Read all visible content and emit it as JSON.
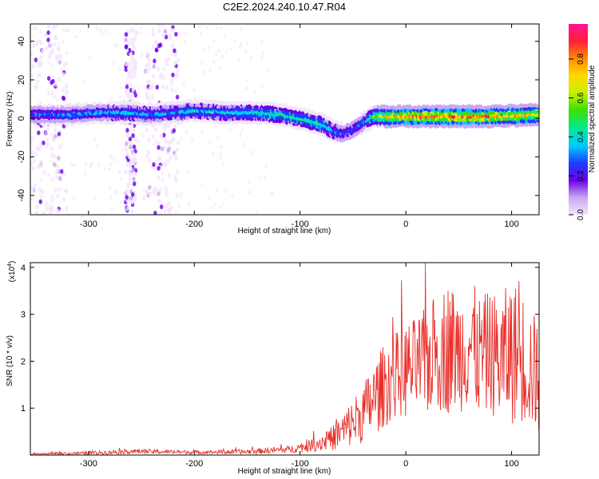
{
  "title": "C2E2.2024.240.10.47.R04",
  "chart_data": [
    {
      "type": "heatmap",
      "xlabel": "Height of straight line (km)",
      "ylabel": "Frequency (Hz)",
      "xlim": [
        -355,
        126
      ],
      "ylim": [
        -50,
        49
      ],
      "xticks": [
        -300,
        -200,
        -100,
        0,
        100
      ],
      "yticks": [
        -40,
        -20,
        0,
        20,
        40
      ],
      "grid": false,
      "colorbar": {
        "label": "Normalized spectral amplitude",
        "range": [
          0,
          0.98
        ],
        "ticks": [
          0.0,
          0.2,
          0.4,
          0.6,
          0.8
        ],
        "tick_labels": [
          "0.0",
          "0.2",
          "0.4",
          "0.6",
          "0.8"
        ],
        "colors": [
          "#f4e6fb",
          "#c9a8f2",
          "#6a00e8",
          "#1f3cff",
          "#00c8ff",
          "#00e89a",
          "#3ee000",
          "#c8f000",
          "#ffd800",
          "#ff8a00",
          "#ff1e3c",
          "#ff1493"
        ]
      },
      "ridge": {
        "x": [
          -350,
          -320,
          -290,
          -260,
          -240,
          -220,
          -200,
          -170,
          -140,
          -120,
          -100,
          -80,
          -70,
          -60,
          -50,
          -40,
          -30,
          -20,
          0,
          40,
          80,
          126
        ],
        "y": [
          2,
          2,
          3,
          3,
          2,
          3,
          4,
          3,
          3,
          2,
          0,
          -3,
          -6,
          -8,
          -6,
          -2,
          1,
          1,
          1,
          1,
          1,
          2
        ],
        "amplitude": [
          0.35,
          0.4,
          0.4,
          0.45,
          0.4,
          0.45,
          0.45,
          0.45,
          0.5,
          0.55,
          0.5,
          0.5,
          0.45,
          0.35,
          0.3,
          0.4,
          0.6,
          0.8,
          0.95,
          0.95,
          0.9,
          0.8
        ]
      },
      "noise_bands_x": [
        [
          -355,
          -320
        ],
        [
          -265,
          -255
        ],
        [
          -248,
          -215
        ]
      ]
    },
    {
      "type": "line",
      "xlabel": "Height of straight line (km)",
      "ylabel": "SNR (10 * v/v)",
      "y_multiplier": "(x10",
      "y_multiplier_exponent": "4",
      "y_multiplier_close": ")",
      "xlim": [
        -355,
        126
      ],
      "ylim": [
        0,
        41000
      ],
      "xticks": [
        -300,
        -200,
        -100,
        0,
        100
      ],
      "yticks": [
        10000,
        20000,
        30000,
        40000
      ],
      "ytick_labels": [
        "1",
        "2",
        "3",
        "4"
      ],
      "grid": false,
      "series": [
        {
          "color": "#e8302a",
          "x": [
            -355,
            -300,
            -260,
            -200,
            -150,
            -110,
            -90,
            -70,
            -60,
            -50,
            -40,
            -30,
            -20,
            -10,
            0,
            10,
            20,
            30,
            40,
            50,
            60,
            70,
            80,
            90,
            100,
            110,
            120,
            126
          ],
          "y": [
            200,
            400,
            800,
            600,
            700,
            1200,
            2000,
            3500,
            5000,
            7000,
            9000,
            12000,
            15000,
            17000,
            18000,
            19000,
            20000,
            22000,
            23000,
            22000,
            24000,
            21000,
            22000,
            20000,
            22000,
            21000,
            18000,
            16000
          ],
          "amplitude": [
            100,
            300,
            400,
            300,
            400,
            600,
            1000,
            2000,
            3000,
            4000,
            5000,
            6000,
            7000,
            7000,
            8000,
            8000,
            9000,
            10000,
            11000,
            10000,
            11000,
            10000,
            10000,
            11000,
            12000,
            11000,
            10000,
            9000
          ]
        }
      ]
    }
  ]
}
